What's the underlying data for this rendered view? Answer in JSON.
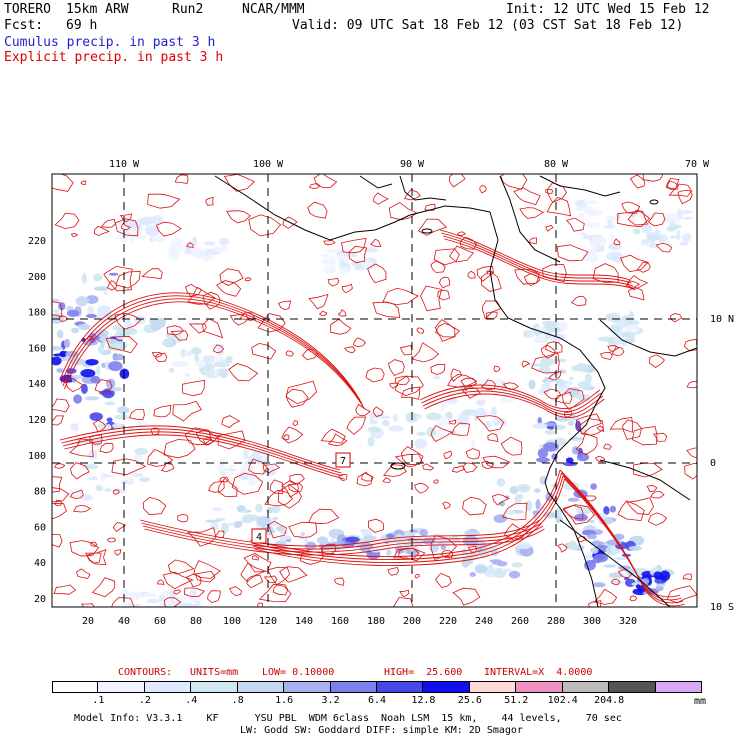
{
  "header": {
    "model": "TORERO",
    "resolution": "15km ARW",
    "run": "Run2",
    "org": "NCAR/MMM",
    "init": "Init: 12 UTC Wed 15 Feb 12",
    "fcst_label": "Fcst:",
    "fcst_value": "69 h",
    "valid": "Valid: 09 UTC Sat 18 Feb 12 (03 CST Sat 18 Feb 12)",
    "cumulus_label": "Cumulus precip. in past 3 h",
    "explicit_label": "Explicit precip. in past 3 h",
    "cumulus_color": "#2222cc",
    "explicit_color": "#dd0000"
  },
  "map": {
    "top_lon_labels": [
      "110 W",
      "100 W",
      "90 W",
      "80 W",
      "70 W"
    ],
    "right_lat_labels": [
      "10 N",
      "0",
      "10 S"
    ],
    "left_y_labels": [
      "220",
      "200",
      "180",
      "160",
      "140",
      "120",
      "100",
      "80",
      "60",
      "40",
      "20"
    ],
    "bottom_x_labels": [
      "20",
      "40",
      "60",
      "80",
      "100",
      "120",
      "140",
      "160",
      "180",
      "200",
      "220",
      "240",
      "260",
      "280",
      "300",
      "320"
    ],
    "box_labels": [
      "4",
      "7"
    ]
  },
  "contour_info": {
    "contours": "CONTOURS:",
    "units": "UNITS=mm",
    "low": "LOW= 0.10000",
    "high": "HIGH=  25.600",
    "interval": "INTERVAL=X  4.0000",
    "color": "#cc0000"
  },
  "colorbar": {
    "labels": [
      ".1",
      ".2",
      ".4",
      ".8",
      "1.6",
      "3.2",
      "6.4",
      "12.8",
      "25.6",
      "51.2",
      "102.4",
      "204.8"
    ],
    "unit": "mm",
    "colors": [
      "#ffffff",
      "#f0f4ff",
      "#dfe9ff",
      "#cfe7ef",
      "#c4d8f2",
      "#a8b0f0",
      "#7e80ec",
      "#4848e8",
      "#1010ee",
      "#ffd8d8",
      "#f090c0",
      "#bbbbbb",
      "#555555",
      "#d8a8f4"
    ]
  },
  "footer": {
    "line1": "Model Info: V3.3.1    KF      YSU PBL  WDM 6class  Noah LSM  15 km,    44 levels,    70 sec",
    "line2": "LW: Godd SW: Goddard DIFF: simple KM: 2D Smagor"
  }
}
